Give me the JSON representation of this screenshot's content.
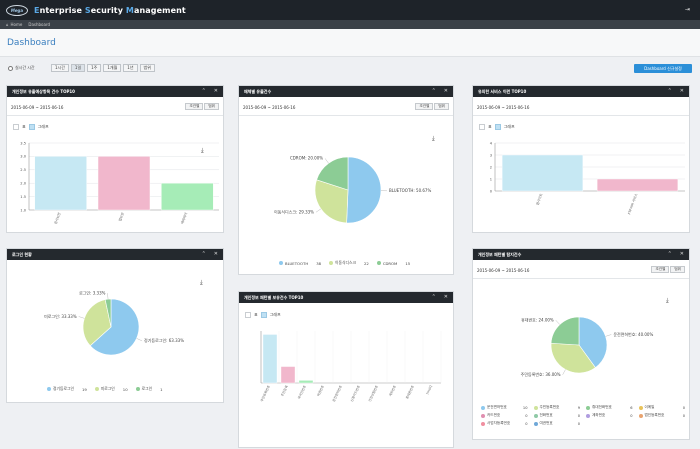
{
  "app": {
    "logo_text": "Mega",
    "title_parts": [
      "E",
      "nterprise ",
      "S",
      "ecurity ",
      "M",
      "anagement"
    ]
  },
  "nav": {
    "home": "Home",
    "current": "Dashboard"
  },
  "page": {
    "title": "Dashboard"
  },
  "filters": {
    "realtime_label": "실시간 시간",
    "ranges": [
      "1시간",
      "1일",
      "1주",
      "1개월",
      "1년",
      "범위"
    ],
    "active_index": 1,
    "dashboard_button": "Dashboard 신규설정"
  },
  "common": {
    "date_range": "2015-06-09 ~ 2015-06-16",
    "btn_lookup": "조건별",
    "btn_detail": "범위",
    "table_label": "표",
    "graph_label": "그래프"
  },
  "panels": {
    "p1": {
      "title": "개인정보 유출예상항목 건수 TOP10"
    },
    "p2": {
      "title": "매체별 유출건수"
    },
    "p3": {
      "title": "유의한 서비스 이런 TOP10"
    },
    "p4": {
      "title": "로그인 현황"
    },
    "p5": {
      "title": "개인정보 패턴별 보유건수 TOP10"
    },
    "p6": {
      "title": "개인정보 패턴별 탐지건수"
    }
  },
  "chart_data": [
    {
      "type": "bar",
      "categories": [
        "문서보안",
        "웹보안",
        "매체제어"
      ],
      "values": [
        3,
        3,
        2
      ],
      "colors": [
        "#c6e8f3",
        "#f1b7cc",
        "#a6ecb7"
      ],
      "ylim": [
        1,
        3.5
      ],
      "yticks": [
        "1.0",
        "1.5",
        "2.0",
        "2.5",
        "3.0",
        "3.5"
      ]
    },
    {
      "type": "pie",
      "slices": [
        {
          "name": "BLUETOOTH",
          "value": 38,
          "label": "BLUETOOTH: 50.67%",
          "color": "#8ec9ee"
        },
        {
          "name": "이동식디스크",
          "value": 22,
          "label": "이동식디스크: 29.33%",
          "color": "#cfe39b"
        },
        {
          "name": "CDROM",
          "value": 15,
          "label": "CDROM: 20.00%",
          "color": "#8ccc95"
        }
      ]
    },
    {
      "type": "bar",
      "categories": [
        "웹사이트",
        "FTP서버 서비스"
      ],
      "values": [
        3,
        1
      ],
      "colors": [
        "#c6e8f3",
        "#f1b7cc"
      ],
      "ylim": [
        0,
        4
      ],
      "yticks": [
        "0",
        "1",
        "2",
        "3",
        "4"
      ]
    },
    {
      "type": "pie",
      "slices": [
        {
          "name": "정기등로그인",
          "value": 19,
          "label": "정기등로그인: 63.33%",
          "color": "#8ec9ee"
        },
        {
          "name": "미로그인",
          "value": 10,
          "label": "미로그인: 33.33%",
          "color": "#cfe39b"
        },
        {
          "name": "로그인",
          "value": 1,
          "label": "로그인: 3.33%",
          "color": "#8ccc95"
        }
      ]
    },
    {
      "type": "bar",
      "categories": [
        "주민등록번호",
        "주민등록",
        "외국인번호",
        "여권번호",
        "운전면허번호",
        "신용카드번호",
        "건강보험번호",
        "계좌번호",
        "휴대폰번호",
        "[mail]"
      ],
      "values": [
        280,
        95,
        15,
        0,
        0,
        0,
        0,
        0,
        0,
        0
      ],
      "colors": [
        "#c6e8f3",
        "#f1b7cc",
        "#a6ecb7",
        "#dde3e9",
        "#dde3e9",
        "#dde3e9",
        "#dde3e9",
        "#dde3e9",
        "#dde3e9",
        "#dde3e9"
      ]
    },
    {
      "type": "pie",
      "slices": [
        {
          "name": "운전면허번호",
          "value": 40.0,
          "label": "운전면허번호: 40.00%",
          "color": "#8ec9ee"
        },
        {
          "name": "주민등록번호",
          "value": 36.0,
          "label": "주민등록번호: 36.00%",
          "color": "#cfe39b"
        },
        {
          "name": "휴대번호",
          "value": 24.0,
          "label": "휴대번호: 24.00%",
          "color": "#8ccc95"
        }
      ],
      "legend": [
        {
          "name": "운전면허번호",
          "count": "10",
          "color": "#8ec9ee"
        },
        {
          "name": "주민등록번호",
          "count": "9",
          "color": "#cfe39b"
        },
        {
          "name": "휴대전화번호",
          "count": "6",
          "color": "#8ccc95"
        },
        {
          "name": "이메일",
          "count": "0",
          "color": "#e8c35a"
        },
        {
          "name": "카드번호",
          "count": "0",
          "color": "#e08fb0"
        },
        {
          "name": "전화번호",
          "count": "0",
          "color": "#8fc9a6"
        },
        {
          "name": "계좌번호",
          "count": "0",
          "color": "#b09de0"
        },
        {
          "name": "법인등록번호",
          "count": "0",
          "color": "#e8a36f"
        },
        {
          "name": "사업자등록번호",
          "count": "0",
          "color": "#f08fa0"
        },
        {
          "name": "여권번호",
          "count": "0",
          "color": "#6fa8d8"
        }
      ]
    }
  ]
}
